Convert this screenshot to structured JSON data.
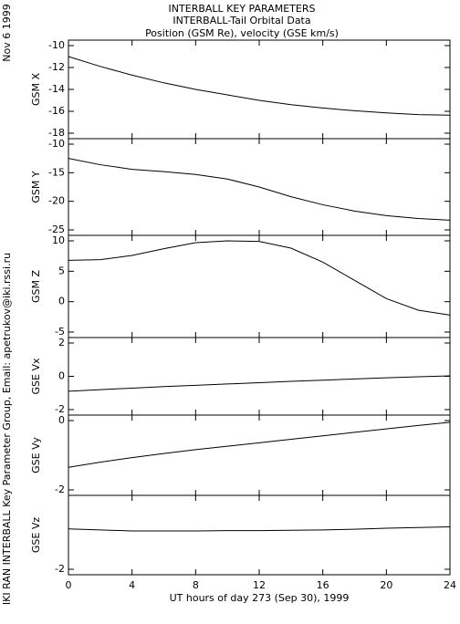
{
  "header": {
    "title": [
      "INTERBALL KEY PARAMETERS",
      "INTERBALL-Tail Orbital Data",
      "Position (GSM Re), velocity (GSE km/s)"
    ],
    "date": "Nov  6 1999",
    "credit": "IKI RAN INTERBALL Key Parameter Group, Email: apetrukov@iki.rssi.ru"
  },
  "chart_data": [
    {
      "type": "line",
      "ylabel": "GSM X",
      "x": [
        0,
        2,
        4,
        6,
        8,
        10,
        12,
        14,
        16,
        18,
        20,
        22,
        24
      ],
      "xlim": [
        0,
        24
      ],
      "series": [
        {
          "color": "#000000",
          "values": [
            -11.0,
            -11.9,
            -12.7,
            -13.4,
            -14.0,
            -14.5,
            -15.0,
            -15.4,
            -15.7,
            -15.95,
            -16.15,
            -16.3,
            -16.35
          ]
        }
      ],
      "ylim": [
        -18,
        -10
      ],
      "yticks": [
        -10,
        -12,
        -14,
        -16,
        -18
      ]
    },
    {
      "type": "line",
      "ylabel": "GSM Y",
      "x": [
        0,
        2,
        4,
        6,
        8,
        10,
        12,
        14,
        16,
        18,
        20,
        22,
        24
      ],
      "xlim": [
        0,
        24
      ],
      "series": [
        {
          "color": "#000000",
          "values": [
            -12.5,
            -13.6,
            -14.4,
            -14.8,
            -15.3,
            -16.1,
            -17.5,
            -19.2,
            -20.6,
            -21.7,
            -22.5,
            -23.0,
            -23.3
          ]
        }
      ],
      "ylim": [
        -25,
        -10
      ],
      "yticks": [
        -10,
        -15,
        -20,
        -25
      ]
    },
    {
      "type": "line",
      "ylabel": "GSM Z",
      "x": [
        0,
        2,
        4,
        6,
        8,
        10,
        12,
        14,
        16,
        18,
        20,
        22,
        24
      ],
      "xlim": [
        0,
        24
      ],
      "series": [
        {
          "color": "#000000",
          "values": [
            6.8,
            6.9,
            7.6,
            8.7,
            9.7,
            10.0,
            9.9,
            8.8,
            6.5,
            3.5,
            0.5,
            -1.4,
            -2.2
          ]
        }
      ],
      "ylim": [
        -5,
        10
      ],
      "yticks": [
        10,
        5,
        0,
        -5
      ]
    },
    {
      "type": "line",
      "ylabel": "GSE Vx",
      "x": [
        0,
        2,
        4,
        6,
        8,
        10,
        12,
        14,
        16,
        18,
        20,
        22,
        24
      ],
      "xlim": [
        0,
        24
      ],
      "series": [
        {
          "color": "#000000",
          "values": [
            -0.9,
            -0.8,
            -0.71,
            -0.62,
            -0.54,
            -0.46,
            -0.38,
            -0.3,
            -0.23,
            -0.16,
            -0.09,
            -0.03,
            0.03
          ]
        }
      ],
      "ylim": [
        -2,
        2
      ],
      "yticks": [
        2,
        0,
        -2
      ]
    },
    {
      "type": "line",
      "ylabel": "GSE Vy",
      "x": [
        0,
        2,
        4,
        6,
        8,
        10,
        12,
        14,
        16,
        18,
        20,
        22,
        24
      ],
      "xlim": [
        0,
        24
      ],
      "series": [
        {
          "color": "#000000",
          "values": [
            -1.35,
            -1.2,
            -1.07,
            -0.95,
            -0.84,
            -0.74,
            -0.64,
            -0.54,
            -0.44,
            -0.34,
            -0.24,
            -0.14,
            -0.05
          ]
        }
      ],
      "ylim": [
        -2,
        0
      ],
      "yticks": [
        0,
        -2
      ]
    },
    {
      "type": "line",
      "ylabel": "GSE Vz",
      "x": [
        0,
        2,
        4,
        6,
        8,
        10,
        12,
        14,
        16,
        18,
        20,
        22,
        24
      ],
      "xlim": [
        0,
        24
      ],
      "series": [
        {
          "color": "#000000",
          "values": [
            -0.82,
            -0.85,
            -0.88,
            -0.88,
            -0.88,
            -0.87,
            -0.87,
            -0.86,
            -0.85,
            -0.83,
            -0.8,
            -0.78,
            -0.76
          ]
        }
      ],
      "ylim": [
        -2,
        0
      ],
      "yticks": [
        -2
      ],
      "xlabel": "UT hours of day 273 (Sep 30), 1999",
      "xticks": [
        0,
        4,
        8,
        12,
        16,
        20,
        24
      ]
    }
  ]
}
